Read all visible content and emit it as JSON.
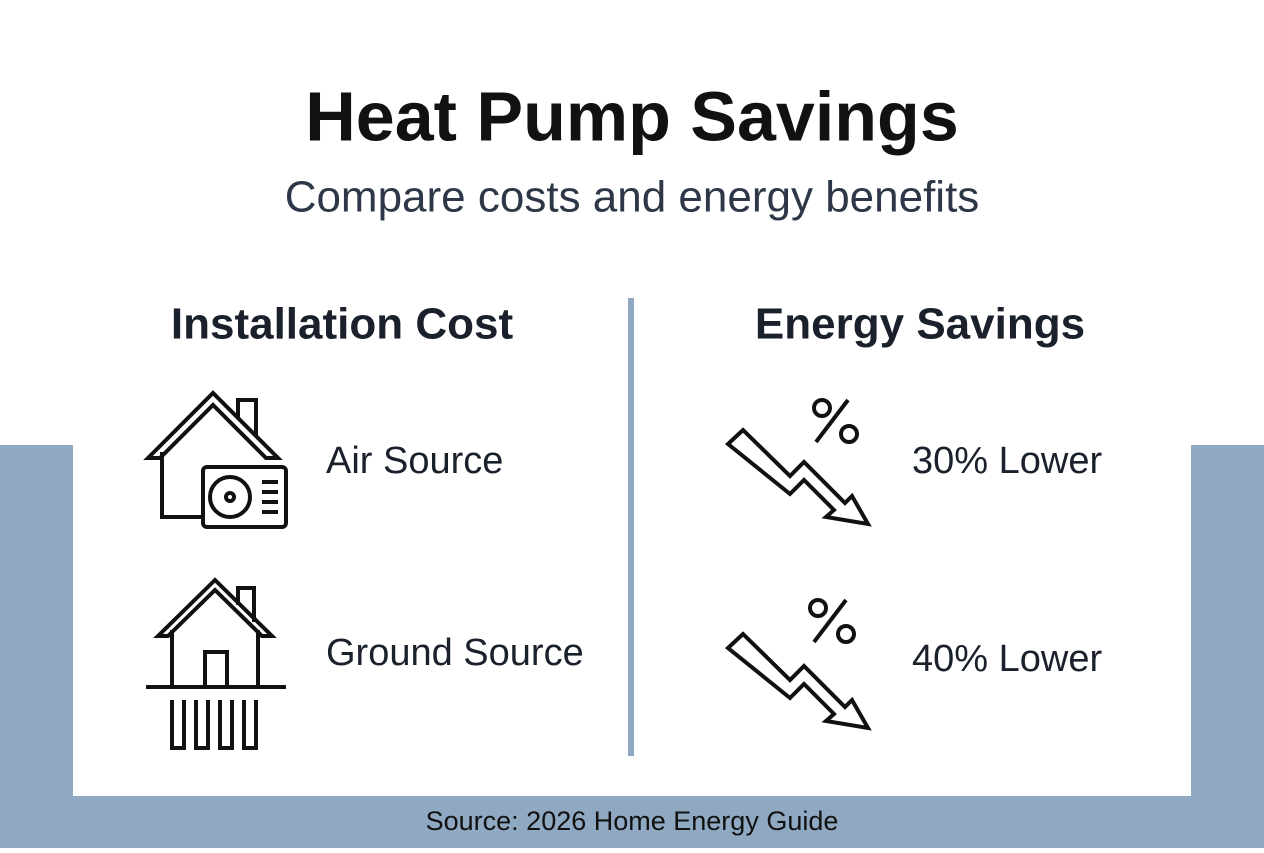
{
  "header": {
    "title": "Heat Pump Savings",
    "subtitle": "Compare costs and energy benefits"
  },
  "columns": [
    {
      "title": "Installation Cost",
      "items": [
        "Air Source",
        "Ground Source"
      ]
    },
    {
      "title": "Energy Savings",
      "items": [
        "30% Lower",
        "40% Lower"
      ]
    }
  ],
  "footer": {
    "source": "Source: 2026 Home Energy Guide"
  }
}
